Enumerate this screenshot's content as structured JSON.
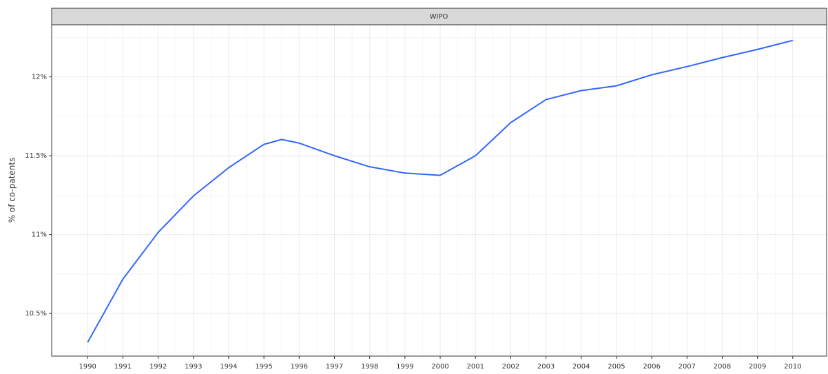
{
  "chart_data": {
    "type": "line",
    "strip_title": "WIPO",
    "y_label": "% of co-patents",
    "x": [
      1990,
      1991,
      1992,
      1993,
      1994,
      1995,
      1995.5,
      1996,
      1997,
      1998,
      1999,
      2000,
      2001,
      2002,
      2003,
      2004,
      2005,
      2006,
      2007,
      2008,
      2009,
      2010
    ],
    "series": [
      {
        "name": "WIPO",
        "color": "#3366ff",
        "values": [
          10.317,
          10.718,
          11.014,
          11.245,
          11.424,
          11.572,
          11.603,
          11.58,
          11.5,
          11.43,
          11.39,
          11.376,
          11.5,
          11.71,
          11.856,
          11.913,
          11.943,
          12.013,
          12.065,
          12.122,
          12.174,
          12.231
        ]
      }
    ],
    "xlim": [
      1988.98,
      2010.96
    ],
    "xticks": [
      1990,
      1991,
      1992,
      1993,
      1994,
      1995,
      1996,
      1997,
      1998,
      1999,
      2000,
      2001,
      2002,
      2003,
      2004,
      2005,
      2006,
      2007,
      2008,
      2009,
      2010
    ],
    "ylim": [
      10.23,
      12.33
    ],
    "yticks": [
      {
        "value": 10.5,
        "label": "10.5%"
      },
      {
        "value": 11,
        "label": "11%"
      },
      {
        "value": 11.5,
        "label": "11.5%"
      },
      {
        "value": 12,
        "label": "12%"
      }
    ],
    "grid": true
  }
}
